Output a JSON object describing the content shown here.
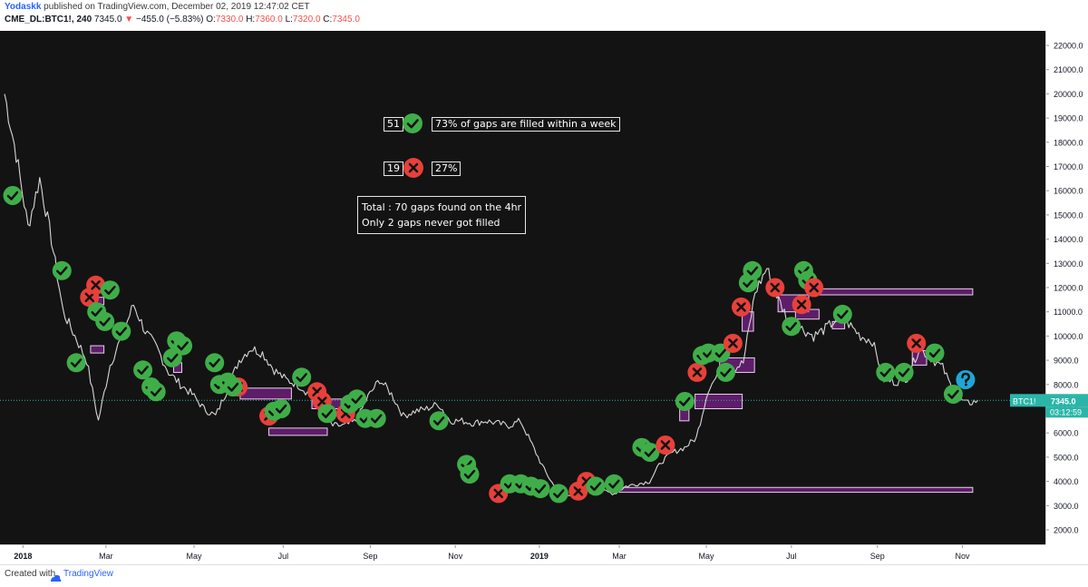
{
  "header": {
    "author": "Yodaskk",
    "published": "published on TradingView.com, December 02, 2019 12:47:02 CET",
    "symbol": "CME_DL:BTC1!, 240",
    "price": "7345.0",
    "change": "−455.0 (−5.83%)",
    "o_label": "O:",
    "o": "7330.0",
    "h_label": "H:",
    "h": "7360.0",
    "l_label": "L:",
    "l": "7320.0",
    "c_label": "C:",
    "c": "7345.0"
  },
  "annotations": {
    "filled_count": "51",
    "filled_text": "73% of gaps are filled within a week",
    "unfilled_count": "19",
    "unfilled_text": "27%",
    "total_text": "Total : 70 gaps found on the 4hr",
    "never_text": "Only 2 gaps never got filled"
  },
  "price_tag": {
    "symbol": "BTC1!",
    "value": "7345.0",
    "countdown": "03:12:59"
  },
  "footer": {
    "created": "Created with",
    "brand": "TradingView"
  },
  "colors": {
    "filled": "#3fae49",
    "unfilled": "#e8403a",
    "open": "#1fa6d6",
    "gap": "#9c27b0",
    "price_line": "#2bb5a8"
  },
  "chart_data": {
    "type": "line",
    "title": "",
    "ylim": [
      1400,
      22600
    ],
    "y_ticks": [
      2000,
      3000,
      4000,
      5000,
      6000,
      7000,
      8000,
      9000,
      10000,
      11000,
      12000,
      13000,
      14000,
      15000,
      16000,
      17000,
      18000,
      19000,
      20000,
      21000,
      22000
    ],
    "x_ticks": [
      "2018",
      "Mar",
      "May",
      "Jul",
      "Sep",
      "Nov",
      "2019",
      "Mar",
      "May",
      "Jul",
      "Sep",
      "Nov"
    ],
    "series": [
      {
        "values": [
          20000,
          17500,
          14500,
          16500,
          14000,
          11000,
          10000,
          9000,
          6500,
          8800,
          10000,
          11300,
          10200,
          9500,
          8500,
          8000,
          7600,
          7000,
          6700,
          7800,
          9000,
          9500,
          9300,
          8600,
          8200,
          8000,
          7600,
          6800,
          6300,
          6300,
          6500,
          7500,
          8200,
          7600,
          6700,
          6900,
          7000,
          7200,
          6500,
          6500,
          6400,
          6500,
          6400,
          6300,
          6500,
          5500,
          4500,
          3700,
          3400,
          3600,
          3800,
          3600,
          3500,
          3800,
          3900,
          4000,
          4800,
          5200,
          5400,
          5800,
          7800,
          8500,
          8600,
          8900,
          11800,
          12800,
          11500,
          10500,
          10300,
          10000,
          10300,
          10700,
          10500,
          10000,
          9800,
          8200,
          8100,
          8300,
          9500,
          9100,
          8700,
          7600,
          7200,
          7345
        ]
      }
    ],
    "current_price": 7345.0,
    "gap_stats": {
      "filled": 51,
      "filled_pct": 73,
      "unfilled": 19,
      "unfilled_pct": 27,
      "total": 70,
      "never_filled": 2
    },
    "markers": [
      {
        "s": "filled",
        "t": 0.8,
        "p": 15800
      },
      {
        "s": "filled",
        "t": 5.6,
        "p": 12700
      },
      {
        "s": "unfilled",
        "t": 8.3,
        "p": 11600
      },
      {
        "s": "unfilled",
        "t": 8.9,
        "p": 12100
      },
      {
        "s": "filled",
        "t": 9.0,
        "p": 11000
      },
      {
        "s": "filled",
        "t": 9.8,
        "p": 10600
      },
      {
        "s": "filled",
        "t": 10.3,
        "p": 11900
      },
      {
        "s": "filled",
        "t": 7.0,
        "p": 8900
      },
      {
        "s": "filled",
        "t": 11.4,
        "p": 10200
      },
      {
        "s": "filled",
        "t": 13.5,
        "p": 8600
      },
      {
        "s": "filled",
        "t": 14.3,
        "p": 7900
      },
      {
        "s": "filled",
        "t": 14.8,
        "p": 7700
      },
      {
        "s": "filled",
        "t": 16.8,
        "p": 9800
      },
      {
        "s": "filled",
        "t": 17.4,
        "p": 9600
      },
      {
        "s": "filled",
        "t": 16.4,
        "p": 9100
      },
      {
        "s": "filled",
        "t": 20.5,
        "p": 8900
      },
      {
        "s": "filled",
        "t": 21.0,
        "p": 8000
      },
      {
        "s": "filled",
        "t": 21.8,
        "p": 8100
      },
      {
        "s": "unfilled",
        "t": 22.8,
        "p": 7900
      },
      {
        "s": "filled",
        "t": 22.3,
        "p": 7900
      },
      {
        "s": "unfilled",
        "t": 25.8,
        "p": 6700
      },
      {
        "s": "filled",
        "t": 26.3,
        "p": 6900
      },
      {
        "s": "filled",
        "t": 27.0,
        "p": 7000
      },
      {
        "s": "filled",
        "t": 29.0,
        "p": 8300
      },
      {
        "s": "unfilled",
        "t": 30.5,
        "p": 7700
      },
      {
        "s": "unfilled",
        "t": 31.0,
        "p": 7300
      },
      {
        "s": "filled",
        "t": 31.5,
        "p": 6800
      },
      {
        "s": "unfilled",
        "t": 33.3,
        "p": 6800
      },
      {
        "s": "filled",
        "t": 33.7,
        "p": 7200
      },
      {
        "s": "filled",
        "t": 34.4,
        "p": 7400
      },
      {
        "s": "filled",
        "t": 35.2,
        "p": 6600
      },
      {
        "s": "filled",
        "t": 36.3,
        "p": 6600
      },
      {
        "s": "filled",
        "t": 42.4,
        "p": 6500
      },
      {
        "s": "filled",
        "t": 45.1,
        "p": 4700
      },
      {
        "s": "filled",
        "t": 45.4,
        "p": 4300
      },
      {
        "s": "unfilled",
        "t": 48.2,
        "p": 3500
      },
      {
        "s": "filled",
        "t": 49.3,
        "p": 3900
      },
      {
        "s": "filled",
        "t": 50.4,
        "p": 3900
      },
      {
        "s": "filled",
        "t": 51.4,
        "p": 3800
      },
      {
        "s": "filled",
        "t": 52.3,
        "p": 3700
      },
      {
        "s": "filled",
        "t": 54.1,
        "p": 3500
      },
      {
        "s": "unfilled",
        "t": 56.0,
        "p": 3600
      },
      {
        "s": "unfilled",
        "t": 56.8,
        "p": 4000
      },
      {
        "s": "filled",
        "t": 57.7,
        "p": 3800
      },
      {
        "s": "filled",
        "t": 59.5,
        "p": 3900
      },
      {
        "s": "filled",
        "t": 62.2,
        "p": 5400
      },
      {
        "s": "filled",
        "t": 63.0,
        "p": 5200
      },
      {
        "s": "unfilled",
        "t": 64.5,
        "p": 5500
      },
      {
        "s": "filled",
        "t": 66.4,
        "p": 7300
      },
      {
        "s": "unfilled",
        "t": 67.6,
        "p": 8500
      },
      {
        "s": "filled",
        "t": 68.1,
        "p": 9200
      },
      {
        "s": "filled",
        "t": 68.7,
        "p": 9300
      },
      {
        "s": "filled",
        "t": 69.9,
        "p": 9300
      },
      {
        "s": "filled",
        "t": 70.4,
        "p": 8500
      },
      {
        "s": "unfilled",
        "t": 71.1,
        "p": 9700
      },
      {
        "s": "unfilled",
        "t": 71.9,
        "p": 11200
      },
      {
        "s": "filled",
        "t": 72.6,
        "p": 12200
      },
      {
        "s": "filled",
        "t": 73.0,
        "p": 12700
      },
      {
        "s": "unfilled",
        "t": 75.2,
        "p": 12000
      },
      {
        "s": "filled",
        "t": 76.8,
        "p": 10400
      },
      {
        "s": "unfilled",
        "t": 77.8,
        "p": 11300
      },
      {
        "s": "filled",
        "t": 78.0,
        "p": 12700
      },
      {
        "s": "filled",
        "t": 78.4,
        "p": 12300
      },
      {
        "s": "unfilled",
        "t": 79.0,
        "p": 12000
      },
      {
        "s": "filled",
        "t": 81.8,
        "p": 10900
      },
      {
        "s": "filled",
        "t": 86.0,
        "p": 8500
      },
      {
        "s": "filled",
        "t": 87.8,
        "p": 8500
      },
      {
        "s": "unfilled",
        "t": 89.0,
        "p": 9700
      },
      {
        "s": "filled",
        "t": 90.8,
        "p": 9300
      },
      {
        "s": "filled",
        "t": 92.6,
        "p": 7600
      },
      {
        "s": "open",
        "t": 93.8,
        "p": 8200
      }
    ],
    "gap_zones": [
      {
        "t0": 8.4,
        "t1": 9.7,
        "p0": 11300,
        "p1": 11600
      },
      {
        "t0": 8.4,
        "t1": 9.7,
        "p0": 9300,
        "p1": 9600
      },
      {
        "t0": 16.5,
        "t1": 17.3,
        "p0": 8500,
        "p1": 8900
      },
      {
        "t0": 23.0,
        "t1": 28.0,
        "p0": 7400,
        "p1": 7850
      },
      {
        "t0": 25.8,
        "t1": 31.5,
        "p0": 5900,
        "p1": 6200
      },
      {
        "t0": 30.0,
        "t1": 33.0,
        "p0": 7000,
        "p1": 7400
      },
      {
        "t0": 65.9,
        "t1": 66.8,
        "p0": 6500,
        "p1": 7300
      },
      {
        "t0": 67.4,
        "t1": 72.0,
        "p0": 7000,
        "p1": 7600
      },
      {
        "t0": 69.8,
        "t1": 73.2,
        "p0": 8500,
        "p1": 9100
      },
      {
        "t0": 72.0,
        "t1": 73.1,
        "p0": 10200,
        "p1": 11000
      },
      {
        "t0": 75.5,
        "t1": 78.5,
        "p0": 11000,
        "p1": 11700
      },
      {
        "t0": 77.2,
        "t1": 79.5,
        "p0": 10700,
        "p1": 11100
      },
      {
        "t0": 80.8,
        "t1": 82.0,
        "p0": 10300,
        "p1": 10600
      },
      {
        "t0": 88.6,
        "t1": 90.0,
        "p0": 8800,
        "p1": 9400
      },
      {
        "t0": 78.5,
        "t1": 94.5,
        "p0": 11700,
        "p1": 11950
      },
      {
        "t0": 60.0,
        "t1": 94.5,
        "p0": 3550,
        "p1": 3750
      }
    ]
  }
}
